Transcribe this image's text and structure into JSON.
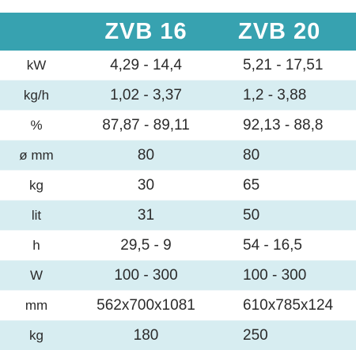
{
  "models": [
    "ZVB 16",
    "ZVB 20"
  ],
  "rows": [
    {
      "unit": "kW",
      "a": "4,29 - 14,4",
      "b": "5,21 - 17,51"
    },
    {
      "unit": "kg/h",
      "a": "1,02 - 3,37",
      "b": "1,2 - 3,88"
    },
    {
      "unit": "%",
      "a": "87,87 - 89,11",
      "b": "92,13 - 88,8"
    },
    {
      "unit": "ø mm",
      "a": "80",
      "b": "80"
    },
    {
      "unit": "kg",
      "a": "30",
      "b": "65"
    },
    {
      "unit": "lit",
      "a": "31",
      "b": "50"
    },
    {
      "unit": "h",
      "a": "29,5 - 9",
      "b": "54 - 16,5"
    },
    {
      "unit": "W",
      "a": "100 - 300",
      "b": "100 - 300"
    },
    {
      "unit": "mm",
      "a": "562x700x1081",
      "b": "610x785x124"
    },
    {
      "unit": "kg",
      "a": "180",
      "b": "250"
    }
  ],
  "colors": {
    "header_bg": "#37a2b0",
    "header_text": "#ffffff",
    "row_tint": "#d7edf1",
    "row_plain": "#ffffff",
    "text": "#2b2b2b"
  }
}
